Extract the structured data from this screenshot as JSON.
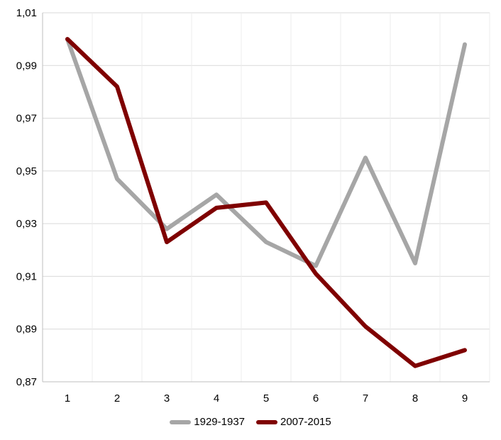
{
  "chart_data": {
    "type": "line",
    "title": "",
    "xlabel": "",
    "ylabel": "",
    "x": [
      1,
      2,
      3,
      4,
      5,
      6,
      7,
      8,
      9
    ],
    "x_tick_labels": [
      "1",
      "2",
      "3",
      "4",
      "5",
      "6",
      "7",
      "8",
      "9"
    ],
    "ylim": [
      0.87,
      1.01
    ],
    "y_ticks": [
      0.87,
      0.89,
      0.91,
      0.93,
      0.95,
      0.97,
      0.99,
      1.01
    ],
    "y_tick_labels": [
      "0,87",
      "0,89",
      "0,91",
      "0,93",
      "0,95",
      "0,97",
      "0,99",
      "1,01"
    ],
    "grid": true,
    "legend_position": "bottom",
    "series": [
      {
        "name": "1929-1937",
        "color": "#a6a6a6",
        "values": [
          1.0,
          0.947,
          0.928,
          0.941,
          0.923,
          0.914,
          0.955,
          0.915,
          0.998
        ]
      },
      {
        "name": "2007-2015",
        "color": "#7f0000",
        "values": [
          1.0,
          0.982,
          0.923,
          0.936,
          0.938,
          0.911,
          0.891,
          0.876,
          0.882
        ]
      }
    ]
  }
}
